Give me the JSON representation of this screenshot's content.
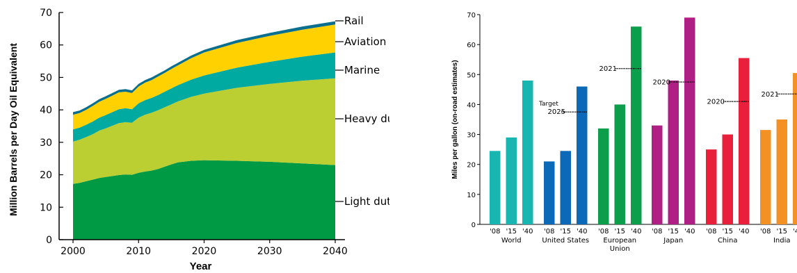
{
  "chart_data": [
    {
      "type": "area",
      "stacked": true,
      "title": "",
      "xlabel": "Year",
      "ylabel": "Million Barrels per Day Oil Equivalent",
      "xlim": [
        2000,
        2040
      ],
      "ylim": [
        0,
        70
      ],
      "xticks": [
        2000,
        2010,
        2020,
        2030,
        2040
      ],
      "yticks": [
        0,
        10,
        20,
        30,
        40,
        50,
        60,
        70
      ],
      "x": [
        2000,
        2001,
        2002,
        2003,
        2004,
        2005,
        2006,
        2007,
        2008,
        2009,
        2010,
        2011,
        2012,
        2013,
        2014,
        2015,
        2016,
        2018,
        2020,
        2025,
        2030,
        2035,
        2040
      ],
      "series": [
        {
          "name": "Light duty",
          "color": "#009a44",
          "values": [
            17.2,
            17.5,
            18.0,
            18.5,
            19.0,
            19.3,
            19.6,
            19.9,
            20.1,
            20.0,
            20.6,
            21.0,
            21.3,
            21.8,
            22.5,
            23.2,
            23.8,
            24.3,
            24.5,
            24.3,
            24.0,
            23.5,
            23.0
          ]
        },
        {
          "name": "Heavy duty",
          "color": "#bccf32",
          "values": [
            13.0,
            13.3,
            13.6,
            14.0,
            14.6,
            15.0,
            15.5,
            16.0,
            16.1,
            16.0,
            17.0,
            17.5,
            17.8,
            18.1,
            18.3,
            18.5,
            18.8,
            19.7,
            20.5,
            22.5,
            24.0,
            25.5,
            26.7
          ]
        },
        {
          "name": "Marine",
          "color": "#00aaa0",
          "values": [
            3.8,
            3.7,
            3.8,
            3.9,
            4.0,
            4.1,
            4.2,
            4.3,
            4.3,
            4.2,
            4.4,
            4.5,
            4.6,
            4.7,
            4.8,
            4.9,
            5.0,
            5.3,
            5.6,
            6.2,
            6.8,
            7.4,
            8.0
          ]
        },
        {
          "name": "Aviation",
          "color": "#ffd100",
          "values": [
            4.5,
            4.5,
            4.6,
            4.8,
            4.9,
            5.0,
            5.1,
            5.2,
            5.1,
            5.0,
            5.2,
            5.4,
            5.5,
            5.7,
            5.8,
            6.0,
            6.1,
            6.6,
            7.1,
            7.6,
            8.0,
            8.3,
            8.6
          ]
        },
        {
          "name": "Rail",
          "color": "#0a6e8e",
          "values": [
            0.8,
            0.8,
            0.8,
            0.8,
            0.8,
            0.8,
            0.8,
            0.8,
            0.8,
            0.8,
            0.8,
            0.8,
            0.8,
            0.8,
            0.8,
            0.8,
            0.8,
            0.8,
            0.8,
            0.9,
            0.9,
            1.0,
            1.0
          ]
        }
      ],
      "legend_placement": "right, labels at end of each layer"
    },
    {
      "type": "bar",
      "title": "",
      "ylabel": "Miles per gallon (on-road estimates)",
      "ylim": [
        0,
        70
      ],
      "yticks": [
        0,
        10,
        20,
        30,
        40,
        50,
        60,
        70
      ],
      "bar_labels": [
        "'08",
        "'15",
        "'40"
      ],
      "groups": [
        {
          "name": "World",
          "lines": [
            "World"
          ],
          "values": [
            24.5,
            29,
            48
          ],
          "color": "#19b5b0",
          "target": null
        },
        {
          "name": "United States",
          "lines": [
            "United States"
          ],
          "values": [
            21,
            24.5,
            46
          ],
          "color": "#0b69b7",
          "target": {
            "value": 37.5,
            "label_lines": [
              "Target",
              "2025"
            ]
          }
        },
        {
          "name": "European Union",
          "lines": [
            "European",
            "Union"
          ],
          "values": [
            32,
            40,
            66
          ],
          "color": "#0d9e4c",
          "target": {
            "value": 52,
            "label_lines": [
              "2021"
            ]
          }
        },
        {
          "name": "Japan",
          "lines": [
            "Japan"
          ],
          "values": [
            33,
            48,
            69
          ],
          "color": "#b01f84",
          "target": {
            "value": 47.5,
            "label_lines": [
              "2020"
            ]
          }
        },
        {
          "name": "China",
          "lines": [
            "China"
          ],
          "values": [
            25,
            30,
            55.5
          ],
          "color": "#e8203b",
          "target": {
            "value": 41,
            "label_lines": [
              "2020"
            ]
          }
        },
        {
          "name": "India",
          "lines": [
            "India"
          ],
          "values": [
            31.5,
            35,
            50.5
          ],
          "color": "#f39124",
          "target": {
            "value": 43.5,
            "label_lines": [
              "2021"
            ]
          }
        }
      ]
    }
  ]
}
